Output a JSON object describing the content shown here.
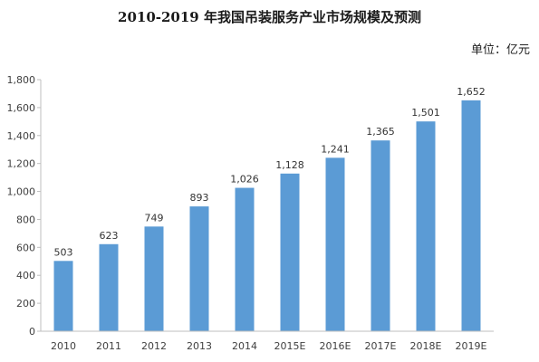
{
  "chart_data": {
    "type": "bar",
    "title": "2010-2019 年我国吊装服务产业市场规模及预测",
    "unit_label": "单位：亿元",
    "categories": [
      "2010",
      "2011",
      "2012",
      "2013",
      "2014",
      "2015E",
      "2016E",
      "2017E",
      "2018E",
      "2019E"
    ],
    "values": [
      503,
      623,
      749,
      893,
      1026,
      1128,
      1241,
      1365,
      1501,
      1652
    ],
    "value_labels": [
      "503",
      "623",
      "749",
      "893",
      "1,026",
      "1,128",
      "1,241",
      "1,365",
      "1,501",
      "1,652"
    ],
    "y_ticks": [
      "0",
      "200",
      "400",
      "600",
      "800",
      "1,000",
      "1,200",
      "1,400",
      "1,600",
      "1,800"
    ],
    "ylim": [
      0,
      1800
    ],
    "grid": false,
    "legend": "none",
    "bar_color": "#5b9bd5"
  }
}
